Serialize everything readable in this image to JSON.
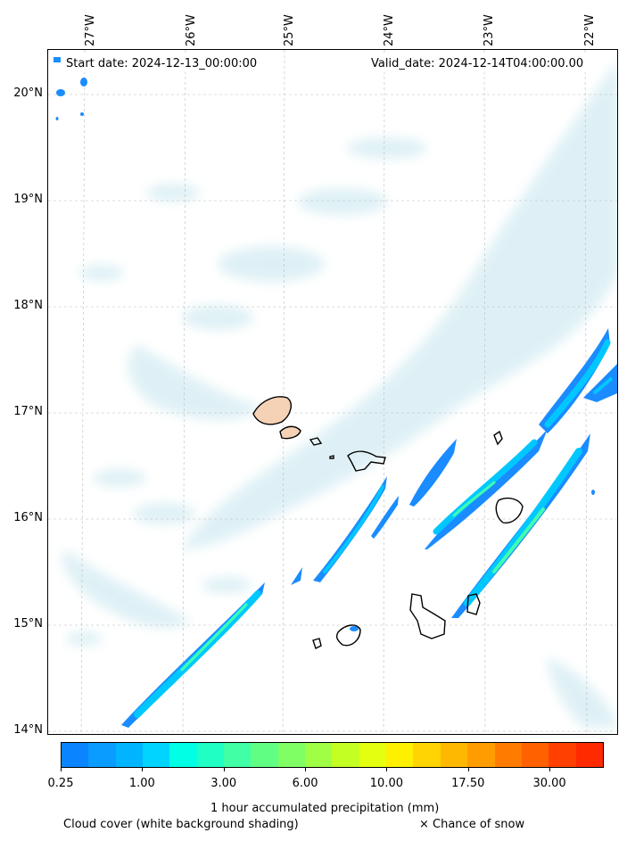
{
  "header": {
    "start_date": "Start date: 2024-12-13_00:00:00",
    "valid_date": "Valid_date: 2024-12-14T04:00:00.00"
  },
  "axes": {
    "longitude_labels": [
      "27°W",
      "26°W",
      "25°W",
      "24°W",
      "23°W",
      "22°W"
    ],
    "latitude_labels": [
      "20°N",
      "19°N",
      "18°N",
      "17°N",
      "16°N",
      "15°N",
      "14°N"
    ]
  },
  "colorbar": {
    "title": "1 hour accumulated precipitation (mm)",
    "tick_labels": [
      "0.25",
      "1.00",
      "3.00",
      "6.00",
      "10.00",
      "17.50",
      "30.00"
    ],
    "colors": [
      "#0a84ff",
      "#0a9cff",
      "#00b4ff",
      "#00d4ff",
      "#00ffe4",
      "#20ffc4",
      "#40ffa4",
      "#60ff84",
      "#80ff64",
      "#a0ff44",
      "#c4ff24",
      "#e4ff10",
      "#fff000",
      "#ffd400",
      "#ffb800",
      "#ff9c00",
      "#ff7c00",
      "#ff6000",
      "#ff4000",
      "#ff2a00"
    ]
  },
  "legend": {
    "cloud_cover": "Cloud cover (white background shading)",
    "snow": "× Chance of snow"
  },
  "map": {
    "cloud_color": "#d4ecf2",
    "precip_outer_color": "#1a8cff",
    "precip_mid_color": "#00c8ff",
    "precip_core_color": "#40ffb0",
    "island_outline_color": "#000000",
    "land_fill_color": "#f5d2b6"
  }
}
